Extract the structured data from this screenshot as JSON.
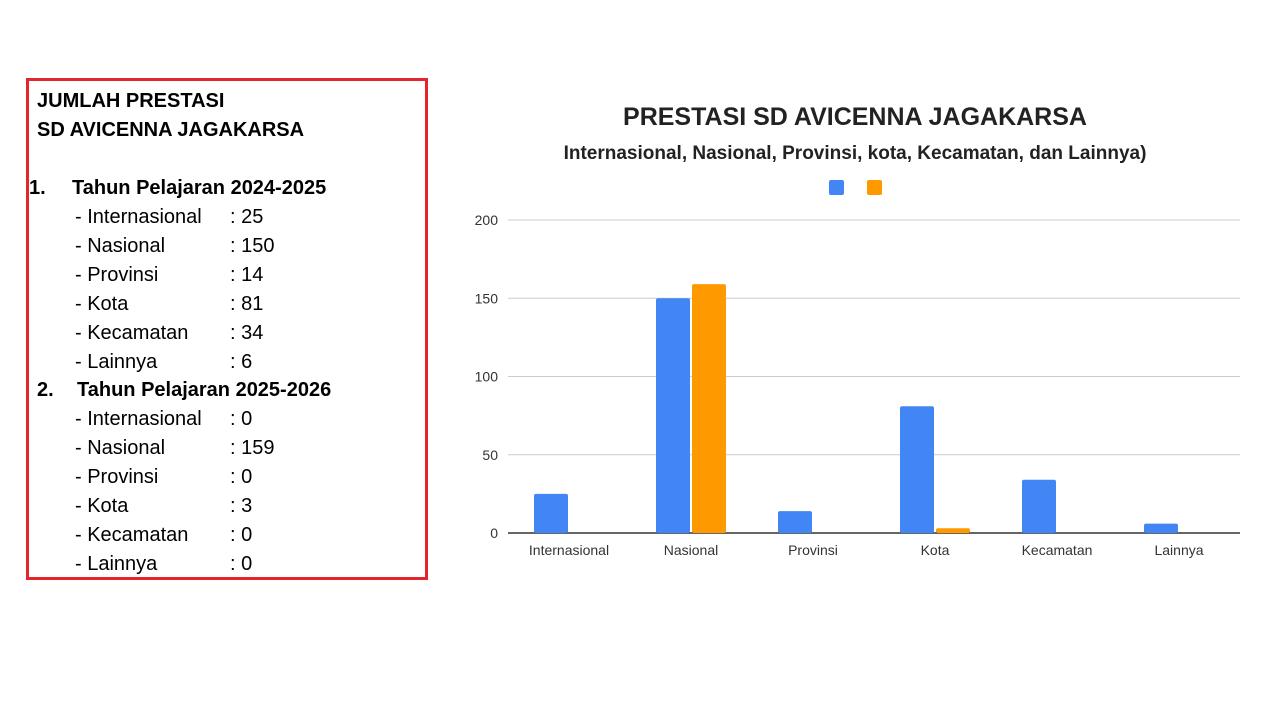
{
  "panel": {
    "title_line1": "JUMLAH PRESTASI",
    "title_line2": "SD AVICENNA JAGAKARSA",
    "sections": [
      {
        "number": "1.",
        "heading": "Tahun Pelajaran 2024-2025",
        "items": [
          {
            "label": "- Internasional",
            "value": ": 25"
          },
          {
            "label": "- Nasional",
            "value": ": 150"
          },
          {
            "label": "- Provinsi",
            "value": ": 14"
          },
          {
            "label": "- Kota",
            "value": ": 81"
          },
          {
            "label": "- Kecamatan",
            "value": ": 34"
          },
          {
            "label": "- Lainnya",
            "value": ": 6"
          }
        ]
      },
      {
        "number": "2.",
        "heading": "Tahun Pelajaran 2025-2026",
        "items": [
          {
            "label": "- Internasional",
            "value": ": 0"
          },
          {
            "label": "- Nasional",
            "value": ": 159"
          },
          {
            "label": "- Provinsi",
            "value": ": 0"
          },
          {
            "label": "- Kota",
            "value": ": 3"
          },
          {
            "label": "- Kecamatan",
            "value": ": 0"
          },
          {
            "label": "- Lainnya",
            "value": ": 0"
          }
        ]
      }
    ]
  },
  "chart_data": {
    "type": "bar",
    "title": "PRESTASI SD AVICENNA JAGAKARSA",
    "subtitle": "Internasional, Nasional, Provinsi, kota, Kecamatan, dan Lainnya)",
    "categories": [
      "Internasional",
      "Nasional",
      "Provinsi",
      "Kota",
      "Kecamatan",
      "Lainnya"
    ],
    "series": [
      {
        "color": "#4285f4",
        "values": [
          25,
          150,
          14,
          81,
          34,
          6
        ]
      },
      {
        "color": "#ff9900",
        "values": [
          0,
          159,
          0,
          3,
          0,
          0
        ]
      }
    ],
    "yticks": [
      "0",
      "50",
      "100",
      "150",
      "200"
    ],
    "ylim": [
      0,
      200
    ],
    "grid": true,
    "legend": "top-center"
  }
}
